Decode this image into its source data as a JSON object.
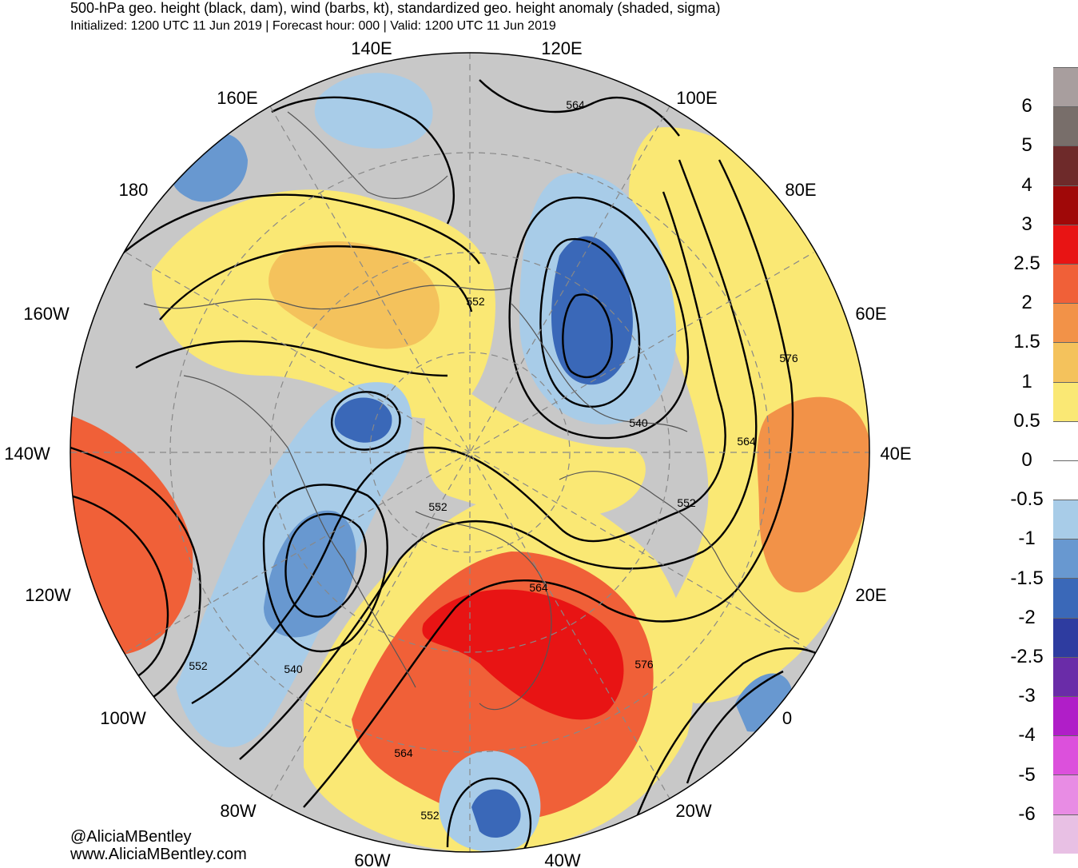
{
  "header": {
    "title": "500-hPa geo. height (black, dam), wind (barbs, kt), standardized geo. height anomaly (shaded, sigma)",
    "subtitle": "Initialized: 1200 UTC 11 Jun 2019 | Forecast hour: 000 | Valid: 1200 UTC 11 Jun 2019"
  },
  "map": {
    "projection": "north polar stereographic",
    "longitude_labels": [
      "140E",
      "120E",
      "160E",
      "100E",
      "180",
      "80E",
      "160W",
      "60E",
      "140W",
      "40E",
      "120W",
      "20E",
      "100W",
      "0",
      "80W",
      "20W",
      "60W",
      "40W"
    ],
    "contour_labels": [
      "564",
      "552",
      "576",
      "540",
      "564",
      "552",
      "552",
      "564",
      "576",
      "552",
      "540",
      "564",
      "552"
    ],
    "colors": {
      "ocean_gray": "#c8c8c8",
      "coast": "#555555",
      "contour": "#000000"
    }
  },
  "colorbar": {
    "labels": [
      "6",
      "5",
      "4",
      "3",
      "2.5",
      "2",
      "1.5",
      "1",
      "0.5",
      "0",
      "-0.5",
      "-1",
      "-1.5",
      "-2",
      "-2.5",
      "-3",
      "-4",
      "-5",
      "-6"
    ],
    "colors": [
      "#a89e9e",
      "#786e6a",
      "#6e2a2a",
      "#a00808",
      "#e81414",
      "#f06038",
      "#f29248",
      "#f4c25c",
      "#fae874",
      "#ffffff",
      "#ffffff",
      "#a8cce8",
      "#6898d0",
      "#3a68b8",
      "#2e3ca0",
      "#6a2ca8",
      "#b01ec8",
      "#dc50dc",
      "#e88ce4",
      "#e8c0e4"
    ]
  },
  "credits": {
    "handle": "@AliciaMBentley",
    "website": "www.AliciaMBentley.com"
  }
}
